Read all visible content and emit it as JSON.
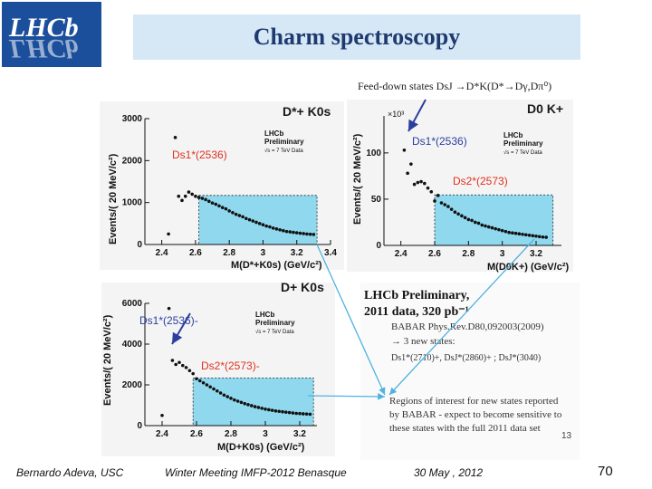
{
  "logo": {
    "text": "LHCb",
    "alt": "LHCb experiment logo"
  },
  "slide": {
    "title": "Charm spectroscopy",
    "subtitle": "Feed-down states DsJ →D*K(D*→Dγ,Dπ⁰)"
  },
  "panels": {
    "top_left": {
      "channel": "D*+ K0s",
      "x_title": "M(D*+K0s) (GeV/c²)",
      "y_title": "Events/( 20 MeV/c²)",
      "state1": "Ds1*(2536)",
      "badge": [
        "LHCb",
        "Preliminary",
        "√s = 7 TeV Data"
      ]
    },
    "top_right": {
      "channel": "D0 K+",
      "x_title": "M(D0K+) (GeV/c²)",
      "y_title": "Events/( 20 MeV/c²)",
      "exponent": "×10³",
      "state1": "Ds1*(2536)",
      "state2": "Ds2*(2573)",
      "badge": [
        "LHCb",
        "Preliminary",
        "√s = 7 TeV Data"
      ]
    },
    "bottom_left": {
      "channel": "D+ K0s",
      "x_title": "M(D+K0s) (GeV/c²)",
      "y_title": "Events/( 20 MeV/c²)",
      "state1": "Ds1*(2536)-",
      "state2": "Ds2*(2573)-",
      "badge": [
        "LHCb",
        "Preliminary",
        "√s = 7 TeV Data"
      ]
    }
  },
  "notes": {
    "preliminary_line1": "LHCb Preliminary,",
    "preliminary_line2": "2011 data, 320 pb⁻¹",
    "babar_ref": "BABAR Phys.Rev.D80,092003(2009)",
    "new_states": "→ 3 new states:",
    "states_list": "Ds1*(2710)+, DsJ*(2860)+ ; DsJ*(3040)",
    "regions": [
      "Regions of interest for new states reported",
      "by BABAR - expect to become sensitive to",
      "these states with the full 2011 data set"
    ],
    "inner_page": "13"
  },
  "colors": {
    "region_fill": "#8fd8ee",
    "arrow": "#4fb3e0",
    "accent_red": "#e0301e",
    "accent_blue": "#2a3f9e"
  },
  "chart_data": [
    {
      "type": "scatter",
      "name": "top_left",
      "xlabel": "M(D*+K0s) (GeV/c²)",
      "ylabel": "Events/( 20 MeV/c²)",
      "xlim": [
        2.3,
        3.4
      ],
      "ylim": [
        0,
        3000
      ],
      "x_ticks": [
        2.4,
        2.6,
        2.8,
        3,
        3.2,
        3.4
      ],
      "y_ticks": [
        0,
        1000,
        2000,
        3000
      ],
      "region": [
        2.62,
        3.32
      ],
      "points": [
        [
          2.44,
          250
        ],
        [
          2.48,
          2550
        ],
        [
          2.5,
          1150
        ],
        [
          2.52,
          1050
        ],
        [
          2.54,
          1150
        ],
        [
          2.56,
          1250
        ],
        [
          2.58,
          1200
        ],
        [
          2.6,
          1150
        ],
        [
          2.62,
          1120
        ],
        [
          2.64,
          1100
        ],
        [
          2.66,
          1070
        ],
        [
          2.68,
          1030
        ],
        [
          2.7,
          990
        ],
        [
          2.72,
          960
        ],
        [
          2.74,
          920
        ],
        [
          2.76,
          880
        ],
        [
          2.78,
          850
        ],
        [
          2.8,
          800
        ],
        [
          2.82,
          760
        ],
        [
          2.84,
          720
        ],
        [
          2.86,
          690
        ],
        [
          2.88,
          660
        ],
        [
          2.9,
          620
        ],
        [
          2.92,
          590
        ],
        [
          2.94,
          560
        ],
        [
          2.96,
          530
        ],
        [
          2.98,
          500
        ],
        [
          3.0,
          470
        ],
        [
          3.02,
          440
        ],
        [
          3.04,
          420
        ],
        [
          3.06,
          390
        ],
        [
          3.08,
          370
        ],
        [
          3.1,
          350
        ],
        [
          3.12,
          330
        ],
        [
          3.14,
          310
        ],
        [
          3.16,
          300
        ],
        [
          3.18,
          290
        ],
        [
          3.2,
          280
        ],
        [
          3.22,
          270
        ],
        [
          3.24,
          260
        ],
        [
          3.26,
          250
        ],
        [
          3.28,
          245
        ],
        [
          3.3,
          240
        ]
      ]
    },
    {
      "type": "scatter",
      "name": "top_right",
      "xlabel": "M(D0K+) (GeV/c²)",
      "ylabel": "Events/( 20 MeV/c²)",
      "xlim": [
        2.3,
        3.35
      ],
      "ylim": [
        0,
        140
      ],
      "x_ticks": [
        2.4,
        2.6,
        2.8,
        3,
        3.2
      ],
      "y_ticks": [
        0,
        50,
        100
      ],
      "region": [
        2.6,
        3.3
      ],
      "points": [
        [
          2.42,
          103
        ],
        [
          2.44,
          78
        ],
        [
          2.46,
          88
        ],
        [
          2.48,
          66
        ],
        [
          2.5,
          68
        ],
        [
          2.52,
          69
        ],
        [
          2.54,
          67
        ],
        [
          2.56,
          62
        ],
        [
          2.58,
          58
        ],
        [
          2.6,
          48
        ],
        [
          2.62,
          54
        ],
        [
          2.64,
          46
        ],
        [
          2.66,
          44
        ],
        [
          2.68,
          42
        ],
        [
          2.7,
          39
        ],
        [
          2.72,
          36
        ],
        [
          2.74,
          34
        ],
        [
          2.76,
          32
        ],
        [
          2.78,
          30
        ],
        [
          2.8,
          28
        ],
        [
          2.82,
          27
        ],
        [
          2.84,
          25
        ],
        [
          2.86,
          24
        ],
        [
          2.88,
          22
        ],
        [
          2.9,
          21
        ],
        [
          2.92,
          20
        ],
        [
          2.94,
          19
        ],
        [
          2.96,
          18
        ],
        [
          2.98,
          17
        ],
        [
          3.0,
          16
        ],
        [
          3.02,
          15
        ],
        [
          3.04,
          14
        ],
        [
          3.06,
          13.5
        ],
        [
          3.08,
          13
        ],
        [
          3.1,
          12.5
        ],
        [
          3.12,
          12
        ],
        [
          3.14,
          11.5
        ],
        [
          3.16,
          11
        ],
        [
          3.18,
          10.5
        ],
        [
          3.2,
          10
        ],
        [
          3.22,
          9.5
        ],
        [
          3.24,
          9
        ],
        [
          3.26,
          8.8
        ]
      ]
    },
    {
      "type": "scatter",
      "name": "bottom_left",
      "xlabel": "M(D+K0s) (GeV/c²)",
      "ylabel": "Events/( 20 MeV/c²)",
      "xlim": [
        2.3,
        3.3
      ],
      "ylim": [
        0,
        6000
      ],
      "x_ticks": [
        2.4,
        2.6,
        2.8,
        3,
        3.2
      ],
      "y_ticks": [
        0,
        2000,
        4000,
        6000
      ],
      "region": [
        2.58,
        3.28
      ],
      "points": [
        [
          2.4,
          500
        ],
        [
          2.44,
          5750
        ],
        [
          2.46,
          3200
        ],
        [
          2.48,
          3000
        ],
        [
          2.5,
          3100
        ],
        [
          2.52,
          2950
        ],
        [
          2.54,
          2850
        ],
        [
          2.56,
          2700
        ],
        [
          2.58,
          2550
        ],
        [
          2.6,
          2300
        ],
        [
          2.62,
          2200
        ],
        [
          2.64,
          2100
        ],
        [
          2.66,
          2000
        ],
        [
          2.68,
          1900
        ],
        [
          2.7,
          1800
        ],
        [
          2.72,
          1700
        ],
        [
          2.74,
          1600
        ],
        [
          2.76,
          1500
        ],
        [
          2.78,
          1420
        ],
        [
          2.8,
          1340
        ],
        [
          2.82,
          1260
        ],
        [
          2.84,
          1200
        ],
        [
          2.86,
          1140
        ],
        [
          2.88,
          1080
        ],
        [
          2.9,
          1030
        ],
        [
          2.92,
          980
        ],
        [
          2.94,
          930
        ],
        [
          2.96,
          890
        ],
        [
          2.98,
          850
        ],
        [
          3.0,
          810
        ],
        [
          3.02,
          780
        ],
        [
          3.04,
          750
        ],
        [
          3.06,
          720
        ],
        [
          3.08,
          700
        ],
        [
          3.1,
          680
        ],
        [
          3.12,
          660
        ],
        [
          3.14,
          640
        ],
        [
          3.16,
          620
        ],
        [
          3.18,
          600
        ],
        [
          3.2,
          590
        ],
        [
          3.22,
          580
        ],
        [
          3.24,
          570
        ],
        [
          3.26,
          560
        ]
      ]
    }
  ],
  "footer": {
    "author": "Bernardo Adeva, USC",
    "meeting": "Winter Meeting IMFP-2012 Benasque",
    "date": "30 May , 2012",
    "page": "70"
  }
}
